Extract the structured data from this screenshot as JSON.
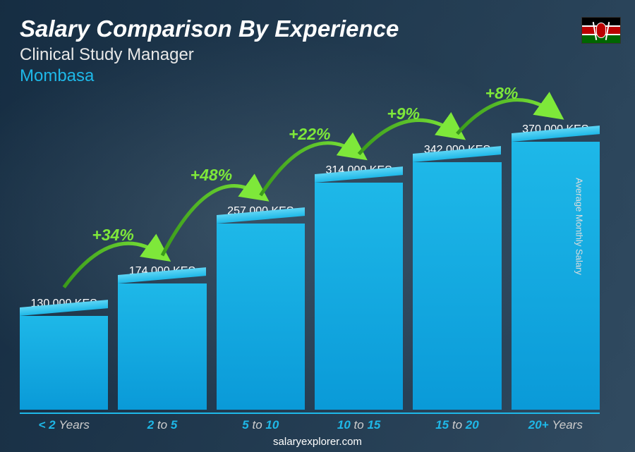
{
  "header": {
    "title": "Salary Comparison By Experience",
    "subtitle": "Clinical Study Manager",
    "location": "Mombasa"
  },
  "flag": {
    "country": "Kenya",
    "stripes": [
      "#000000",
      "#ffffff",
      "#bb0000",
      "#ffffff",
      "#006600"
    ]
  },
  "chart": {
    "type": "bar",
    "currency": "KES",
    "ylabel": "Average Monthly Salary",
    "bar_color": "#1eb8e8",
    "bar_color_top": "#5dd5f5",
    "background": "#1a3a52",
    "value_fontsize": 16,
    "value_color": "#ffffff",
    "xlabel_color": "#1eb8e8",
    "xlabel_fontsize": 17,
    "max_value": 370000,
    "bars": [
      {
        "label_prefix": "< 2",
        "label_suffix": "Years",
        "value": 130000,
        "value_label": "130,000 KES"
      },
      {
        "label_prefix": "2",
        "label_mid": "to",
        "label_suffix": "5",
        "value": 174000,
        "value_label": "174,000 KES"
      },
      {
        "label_prefix": "5",
        "label_mid": "to",
        "label_suffix": "10",
        "value": 257000,
        "value_label": "257,000 KES"
      },
      {
        "label_prefix": "10",
        "label_mid": "to",
        "label_suffix": "15",
        "value": 314000,
        "value_label": "314,000 KES"
      },
      {
        "label_prefix": "15",
        "label_mid": "to",
        "label_suffix": "20",
        "value": 342000,
        "value_label": "342,000 KES"
      },
      {
        "label_prefix": "20+",
        "label_suffix": "Years",
        "value": 370000,
        "value_label": "370,000 KES"
      }
    ],
    "increases": [
      {
        "from": 0,
        "to": 1,
        "label": "+34%"
      },
      {
        "from": 1,
        "to": 2,
        "label": "+48%"
      },
      {
        "from": 2,
        "to": 3,
        "label": "+22%"
      },
      {
        "from": 3,
        "to": 4,
        "label": "+9%"
      },
      {
        "from": 4,
        "to": 5,
        "label": "+8%"
      }
    ],
    "arc_color_start": "#3a9b1a",
    "arc_color_end": "#7ee83a",
    "arc_label_color": "#7ee83a",
    "arc_label_fontsize": 23
  },
  "footer": {
    "site": "salaryexplorer.com"
  }
}
